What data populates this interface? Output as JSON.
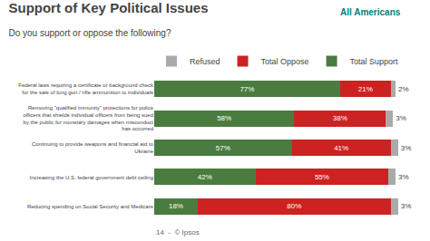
{
  "chart_data": {
    "type": "bar",
    "orientation": "horizontal",
    "stacked": true,
    "data_labels": true,
    "tick_labels": "y",
    "grid": false,
    "legend": "top",
    "title": "Support of Key Political Issues",
    "subtitle": "Do you support or oppose the following?",
    "annotations": [
      "All Americans",
      "14  -  © Ipsos"
    ],
    "categories": [
      "Federal laws requiring a certificate or background check\nfor the sale of long gun / rifle ammunition to individuals",
      "Removing \"qualified immunity\" protections for police\nofficers that shields individual officers from being sued\nby the public for monetary damages when misconduct\nhas occurred",
      "Continuing to provide weapons and financial aid to\nUkraine",
      "Increasing the U.S. federal government debt ceiling",
      "Reducing spending on Social Security and Medicare"
    ],
    "xlim": [
      0,
      103
    ],
    "series": [
      {
        "name": "Total Support",
        "color": "#4a7c3f",
        "values": [
          77,
          58,
          57,
          42,
          18
        ],
        "value_labels": [
          "77%",
          "58%",
          "57%",
          "42%",
          "18%"
        ]
      },
      {
        "name": "Total Oppose",
        "color": "#cc2222",
        "values": [
          21,
          38,
          41,
          55,
          80
        ],
        "value_labels": [
          "21%",
          "38%",
          "41%",
          "55%",
          "80%"
        ]
      },
      {
        "name": "Refused",
        "color": "#aaaaaa",
        "values": [
          2,
          3,
          3,
          3,
          3
        ],
        "value_labels": [
          "2%",
          "3%",
          "3%",
          "3%",
          "3%"
        ]
      }
    ]
  }
}
